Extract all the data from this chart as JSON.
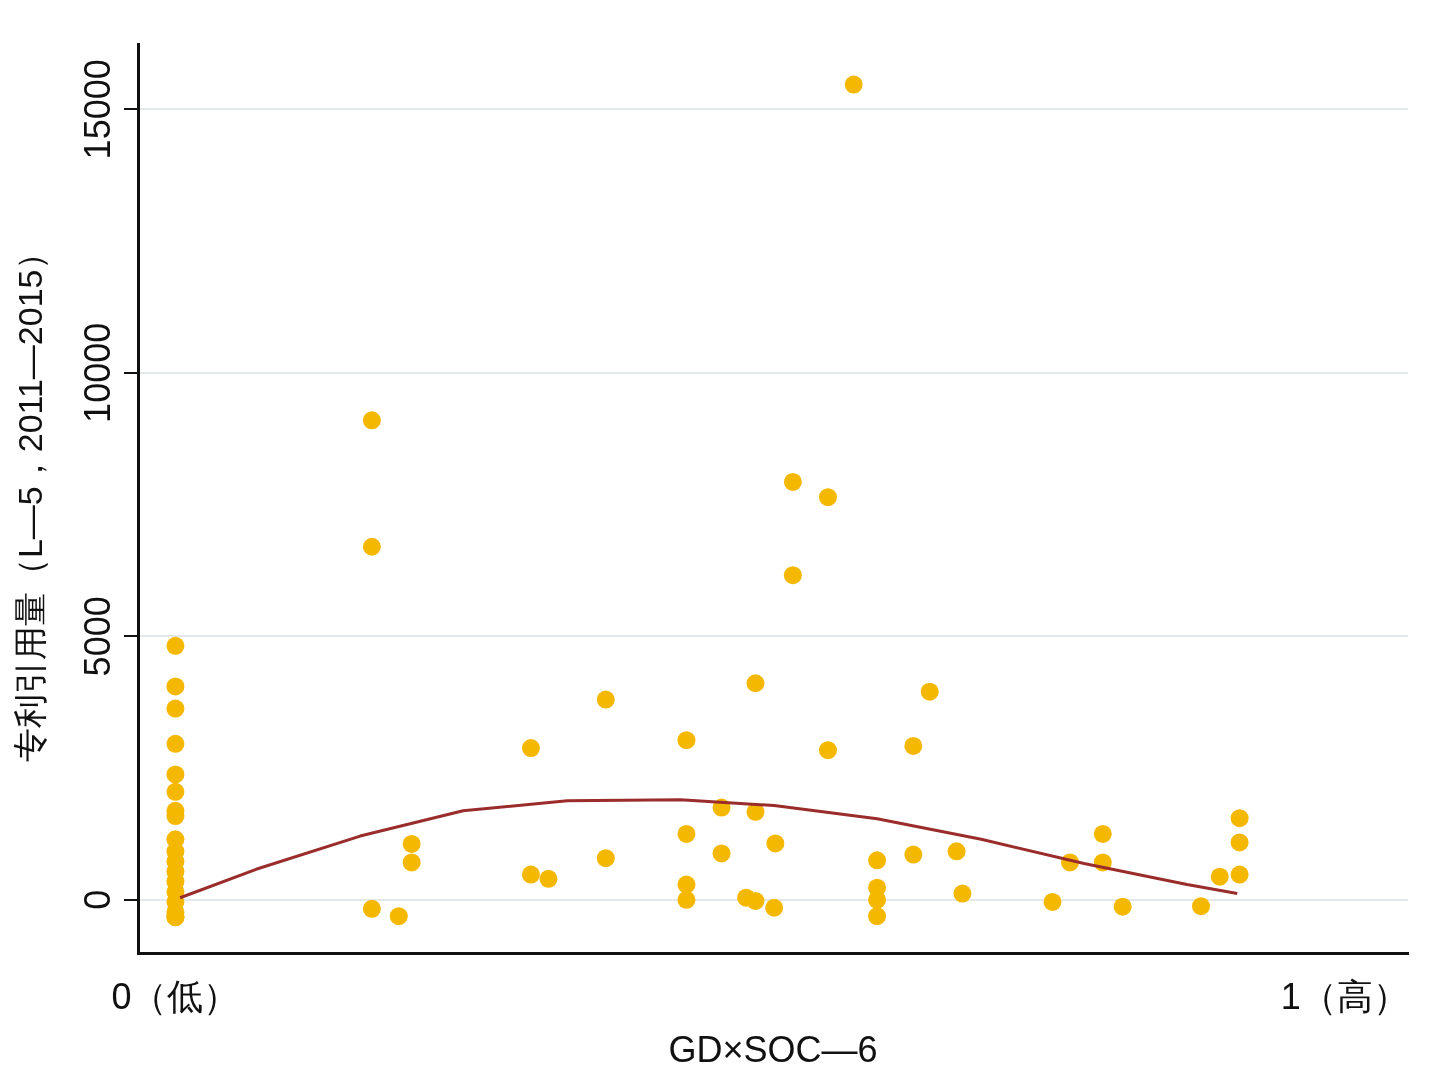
{
  "chart_data": {
    "type": "scatter",
    "xlabel": "GD×SOC—6",
    "ylabel": "专利引用量（L—5，2011—2015）",
    "xlim": [
      -0.032,
      1.054
    ],
    "ylim": [
      -1020,
      16240
    ],
    "xticks": [
      {
        "value": 0,
        "label": "0（低）"
      },
      {
        "value": 1,
        "label": "1（高）"
      }
    ],
    "yticks": [
      0,
      5000,
      10000,
      15000
    ],
    "grid": "y",
    "legend": false,
    "marker": "circle",
    "series": [
      {
        "color": "#f5b800",
        "x": [
          0,
          0,
          0,
          0,
          0,
          0,
          0,
          0,
          0,
          0,
          0,
          0,
          0,
          0,
          0,
          0,
          0,
          0,
          0.168,
          0.168,
          0.168,
          0.191,
          0.202,
          0.202,
          0.304,
          0.304,
          0.319,
          0.368,
          0.368,
          0.437,
          0.437,
          0.437,
          0.437,
          0.467,
          0.467,
          0.488,
          0.496,
          0.496,
          0.496,
          0.512,
          0.513,
          0.528,
          0.528,
          0.558,
          0.558,
          0.58,
          0.6,
          0.6,
          0.6,
          0.6,
          0.631,
          0.631,
          0.645,
          0.668,
          0.673,
          0.75,
          0.765,
          0.793,
          0.793,
          0.81,
          0.877,
          0.893,
          0.91,
          0.91,
          0.91
        ],
        "values": [
          4820,
          4050,
          3630,
          2960,
          2380,
          2050,
          1690,
          1590,
          1150,
          920,
          730,
          540,
          350,
          150,
          -40,
          -230,
          -330,
          -330,
          9100,
          6700,
          -170,
          -310,
          1060,
          710,
          2880,
          480,
          400,
          3800,
          790,
          3030,
          1250,
          290,
          0,
          1750,
          880,
          40,
          4110,
          1670,
          -20,
          -150,
          1070,
          7930,
          6160,
          7640,
          2840,
          15470,
          750,
          230,
          0,
          -310,
          2920,
          860,
          3950,
          920,
          120,
          -40,
          710,
          1250,
          710,
          -130,
          -120,
          440,
          1550,
          1090,
          480
        ]
      },
      {
        "type": "line",
        "color": "#9b2c2c",
        "marker": "none",
        "x": [
          0.004,
          0.069,
          0.158,
          0.246,
          0.335,
          0.432,
          0.512,
          0.6,
          0.689,
          0.777,
          0.865,
          0.908
        ],
        "values": [
          40,
          580,
          1210,
          1690,
          1880,
          1900,
          1790,
          1540,
          1150,
          690,
          290,
          120
        ]
      }
    ]
  }
}
